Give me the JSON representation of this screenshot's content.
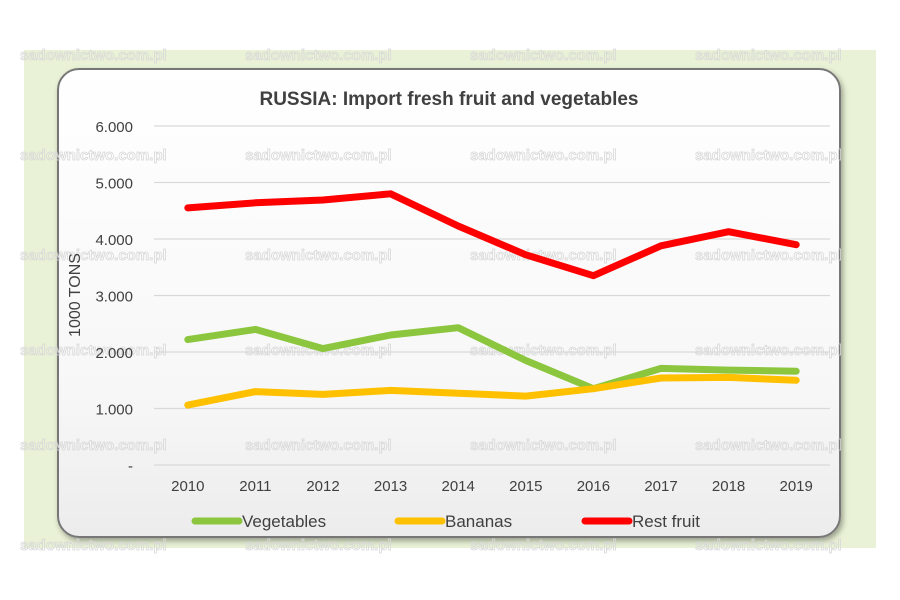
{
  "chart_data": {
    "type": "line",
    "title": "RUSSIA: Import fresh fruit and vegetables",
    "ylabel": "1000 TONS",
    "xlabel": "",
    "categories": [
      "2010",
      "2011",
      "2012",
      "2013",
      "2014",
      "2015",
      "2016",
      "2017",
      "2018",
      "2019"
    ],
    "ylim": [
      0,
      6000
    ],
    "yticks": [
      0,
      1000,
      2000,
      3000,
      4000,
      5000,
      6000
    ],
    "ytick_labels": [
      "-",
      "1.000",
      "2.000",
      "3.000",
      "4.000",
      "5.000",
      "6.000"
    ],
    "grid": true,
    "legend_position": "bottom",
    "series": [
      {
        "name": "Vegetables",
        "color": "#8cc63f",
        "values": [
          2220,
          2400,
          2060,
          2300,
          2430,
          1850,
          1350,
          1710,
          1680,
          1660
        ]
      },
      {
        "name": "Bananas",
        "color": "#ffc000",
        "values": [
          1060,
          1300,
          1250,
          1320,
          1270,
          1220,
          1350,
          1540,
          1550,
          1500
        ]
      },
      {
        "name": "Rest fruit",
        "color": "#ff0000",
        "values": [
          4550,
          4640,
          4690,
          4800,
          4230,
          3720,
          3350,
          3880,
          4130,
          3900
        ]
      }
    ]
  },
  "watermark": "sadownictwo.com.pl"
}
